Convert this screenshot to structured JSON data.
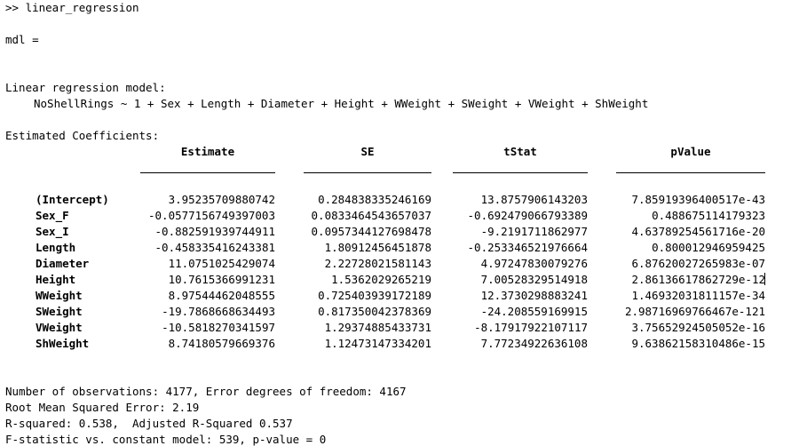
{
  "console": {
    "prompt": ">> ",
    "command": "linear_regression",
    "var_line": "mdl =",
    "model_title": "Linear regression model:",
    "formula": "NoShellRings ~ 1 + Sex + Length + Diameter + Height + WWeight + SWeight + VWeight + ShWeight",
    "coef_title": "Estimated Coefficients:"
  },
  "table": {
    "columns": [
      "Estimate",
      "SE",
      "tStat",
      "pValue"
    ],
    "rows": [
      {
        "name": "(Intercept)",
        "estimate": "3.95235709880742",
        "se": "0.284838335246169",
        "tstat": "13.8757906143203",
        "pvalue": "7.85919396400517e-43"
      },
      {
        "name": "Sex_F",
        "estimate": "-0.0577156749397003",
        "se": "0.0833464543657037",
        "tstat": "-0.692479066793389",
        "pvalue": "0.488675114179323"
      },
      {
        "name": "Sex_I",
        "estimate": "-0.882591939744911",
        "se": "0.0957344127698478",
        "tstat": "-9.2191711862977",
        "pvalue": "4.63789254561716e-20"
      },
      {
        "name": "Length",
        "estimate": "-0.458335416243381",
        "se": "1.80912456451878",
        "tstat": "-0.253346521976664",
        "pvalue": "0.800012946959425"
      },
      {
        "name": "Diameter",
        "estimate": "11.0751025429074",
        "se": "2.22728021581143",
        "tstat": "4.97247830079276",
        "pvalue": "6.87620027265983e-07"
      },
      {
        "name": "Height",
        "estimate": "10.7615366991231",
        "se": "1.5362029265219",
        "tstat": "7.00528329514918",
        "pvalue": "2.86136617862729e-12"
      },
      {
        "name": "WWeight",
        "estimate": "8.97544462048555",
        "se": "0.725403939172189",
        "tstat": "12.3730298883241",
        "pvalue": "1.46932031811157e-34"
      },
      {
        "name": "SWeight",
        "estimate": "-19.7868668634493",
        "se": "0.817350042378369",
        "tstat": "-24.208559169915",
        "pvalue": "2.98716969766467e-121"
      },
      {
        "name": "VWeight",
        "estimate": "-10.5818270341597",
        "se": "1.29374885433731",
        "tstat": "-8.17917922107117",
        "pvalue": "3.75652924505052e-16"
      },
      {
        "name": "ShWeight",
        "estimate": "8.74180579669376",
        "se": "1.12473147334201",
        "tstat": "7.77234922636108",
        "pvalue": "9.63862158310486e-15"
      }
    ]
  },
  "summary": {
    "observations": "Number of observations: 4177, Error degrees of freedom: 4167",
    "rmse": "Root Mean Squared Error: 2.19",
    "rsquared": "R-squared: 0.538,  Adjusted R-Squared 0.537",
    "fstat": "F-statistic vs. constant model: 539, p-value = 0"
  }
}
